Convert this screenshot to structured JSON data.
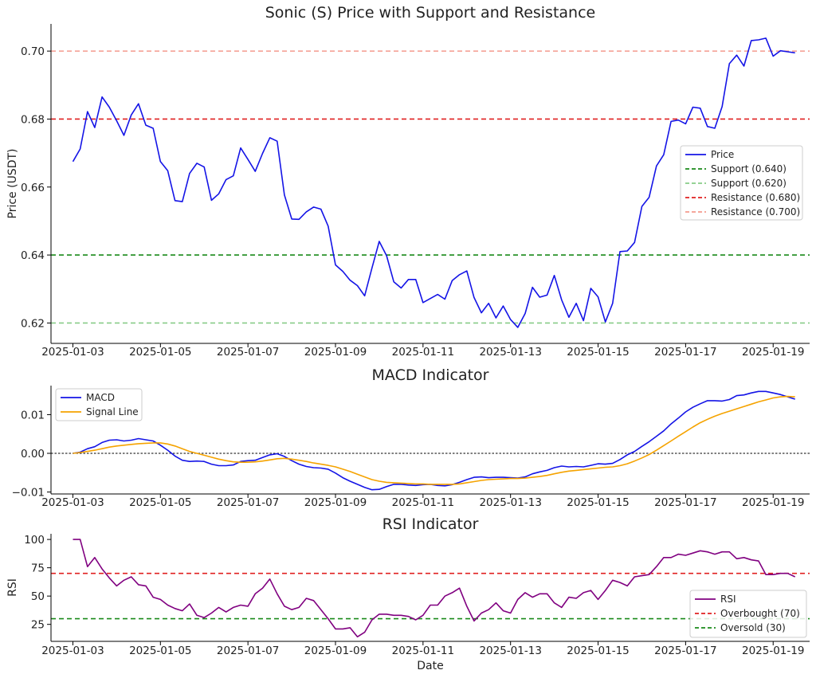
{
  "chart_data": [
    {
      "type": "line",
      "title": "Sonic (S) Price with Support and Resistance",
      "xlabel": "",
      "ylabel": "Price (USDT)",
      "xlim": [
        "2025-01-02T12:00",
        "2025-01-19T20:00"
      ],
      "ylim": [
        0.614,
        0.708
      ],
      "yticks": [
        0.62,
        0.64,
        0.66,
        0.68,
        0.7
      ],
      "ytick_labels": [
        "0.62",
        "0.64",
        "0.66",
        "0.68",
        "0.70"
      ],
      "xtick_labels": [
        "2025-01-03",
        "2025-01-05",
        "2025-01-07",
        "2025-01-09",
        "2025-01-11",
        "2025-01-13",
        "2025-01-15",
        "2025-01-17",
        "2025-01-19"
      ],
      "x_start": "2025-01-03T00:00",
      "x_step_hours": 4,
      "legend_position": "right",
      "series": [
        {
          "name": "Price",
          "color": "#1414e6",
          "values": [
            0.6675,
            0.6712,
            0.6822,
            0.6775,
            0.6865,
            0.6835,
            0.6795,
            0.6752,
            0.6812,
            0.6845,
            0.6782,
            0.6773,
            0.6675,
            0.6648,
            0.656,
            0.6557,
            0.664,
            0.667,
            0.6659,
            0.6561,
            0.658,
            0.6622,
            0.6633,
            0.6715,
            0.6681,
            0.6646,
            0.6699,
            0.6745,
            0.6735,
            0.6577,
            0.6506,
            0.6505,
            0.6527,
            0.6541,
            0.6535,
            0.6485,
            0.6371,
            0.6352,
            0.6326,
            0.631,
            0.628,
            0.6362,
            0.644,
            0.6398,
            0.6321,
            0.6303,
            0.6328,
            0.6328,
            0.626,
            0.6272,
            0.6284,
            0.627,
            0.6325,
            0.6342,
            0.6353,
            0.6275,
            0.623,
            0.6258,
            0.6215,
            0.625,
            0.621,
            0.6187,
            0.6228,
            0.6305,
            0.6276,
            0.6282,
            0.634,
            0.6268,
            0.6217,
            0.6258,
            0.6207,
            0.6302,
            0.6277,
            0.6203,
            0.6258,
            0.641,
            0.6412,
            0.6437,
            0.6543,
            0.657,
            0.6662,
            0.6695,
            0.6793,
            0.6797,
            0.6786,
            0.6835,
            0.6832,
            0.6778,
            0.6773,
            0.6837,
            0.6963,
            0.6988,
            0.6956,
            0.7031,
            0.7033,
            0.7038,
            0.6985,
            0.7001,
            0.6998,
            0.6995
          ]
        }
      ],
      "hlines": [
        {
          "name": "Support (0.640)",
          "value": 0.64,
          "color": "#1a8a1a",
          "style": "dashed"
        },
        {
          "name": "Support (0.620)",
          "value": 0.62,
          "color": "#88cc88",
          "style": "dashed"
        },
        {
          "name": "Resistance (0.680)",
          "value": 0.68,
          "color": "#e02020",
          "style": "dashed"
        },
        {
          "name": "Resistance (0.700)",
          "value": 0.7,
          "color": "#f49b8f",
          "style": "dashed"
        }
      ]
    },
    {
      "type": "line",
      "title": "MACD Indicator",
      "xlabel": "",
      "ylabel": "",
      "xlim": [
        "2025-01-02T12:00",
        "2025-01-19T20:00"
      ],
      "ylim": [
        -0.0105,
        0.0175
      ],
      "yticks": [
        -0.01,
        0.0,
        0.01
      ],
      "ytick_labels": [
        "−0.01",
        "0.00",
        "0.01"
      ],
      "xtick_labels": [
        "2025-01-03",
        "2025-01-05",
        "2025-01-07",
        "2025-01-09",
        "2025-01-11",
        "2025-01-13",
        "2025-01-15",
        "2025-01-17",
        "2025-01-19"
      ],
      "x_start": "2025-01-03T00:00",
      "x_step_hours": 4,
      "legend_position": "upper left",
      "zero_line": 0,
      "series": [
        {
          "name": "MACD",
          "color": "#1414e6",
          "values": [
            0.0,
            0.0003,
            0.0012,
            0.0017,
            0.0028,
            0.0034,
            0.0035,
            0.0032,
            0.0034,
            0.0038,
            0.0035,
            0.0032,
            0.0021,
            0.0008,
            -0.0007,
            -0.0018,
            -0.0021,
            -0.002,
            -0.0021,
            -0.0028,
            -0.0032,
            -0.0032,
            -0.003,
            -0.0021,
            -0.0019,
            -0.0018,
            -0.0011,
            -0.0004,
            -0.0001,
            -0.0008,
            -0.0019,
            -0.0028,
            -0.0034,
            -0.0037,
            -0.0038,
            -0.0041,
            -0.0051,
            -0.0063,
            -0.0072,
            -0.008,
            -0.0088,
            -0.0094,
            -0.0093,
            -0.0086,
            -0.008,
            -0.008,
            -0.0082,
            -0.0083,
            -0.0081,
            -0.008,
            -0.0083,
            -0.0084,
            -0.0081,
            -0.0075,
            -0.0068,
            -0.0062,
            -0.0061,
            -0.0063,
            -0.0062,
            -0.0062,
            -0.0063,
            -0.0064,
            -0.0061,
            -0.0053,
            -0.0048,
            -0.0044,
            -0.0037,
            -0.0033,
            -0.0035,
            -0.0034,
            -0.0035,
            -0.0031,
            -0.0027,
            -0.0028,
            -0.0026,
            -0.0016,
            -0.0004,
            0.0005,
            0.0018,
            0.003,
            0.0044,
            0.0058,
            0.0076,
            0.0091,
            0.0107,
            0.0119,
            0.0128,
            0.0136,
            0.0136,
            0.0135,
            0.0139,
            0.0149,
            0.0151,
            0.0156,
            0.016,
            0.016,
            0.0156,
            0.0152,
            0.0146,
            0.014
          ]
        },
        {
          "name": "Signal Line",
          "color": "#f5a300",
          "values": [
            0.0,
            0.0002,
            0.0005,
            0.0008,
            0.0012,
            0.0016,
            0.0019,
            0.0021,
            0.0023,
            0.0025,
            0.0026,
            0.0027,
            0.0027,
            0.0024,
            0.0019,
            0.0012,
            0.0005,
            0.0,
            -0.0005,
            -0.001,
            -0.0015,
            -0.0019,
            -0.0022,
            -0.0023,
            -0.0023,
            -0.0022,
            -0.002,
            -0.0017,
            -0.0014,
            -0.0013,
            -0.0015,
            -0.0018,
            -0.0021,
            -0.0025,
            -0.0028,
            -0.0031,
            -0.0035,
            -0.0041,
            -0.0047,
            -0.0054,
            -0.0061,
            -0.0068,
            -0.0072,
            -0.0075,
            -0.0076,
            -0.0077,
            -0.0078,
            -0.0079,
            -0.0079,
            -0.008,
            -0.008,
            -0.008,
            -0.008,
            -0.0079,
            -0.0076,
            -0.0073,
            -0.007,
            -0.0068,
            -0.0067,
            -0.0066,
            -0.0065,
            -0.0065,
            -0.0064,
            -0.0062,
            -0.006,
            -0.0057,
            -0.0053,
            -0.0049,
            -0.0046,
            -0.0044,
            -0.0042,
            -0.004,
            -0.0038,
            -0.0036,
            -0.0035,
            -0.0032,
            -0.0027,
            -0.002,
            -0.0012,
            -0.0003,
            0.0008,
            0.002,
            0.0032,
            0.0044,
            0.0056,
            0.0068,
            0.0079,
            0.0088,
            0.0096,
            0.0103,
            0.0109,
            0.0115,
            0.0121,
            0.0127,
            0.0133,
            0.0138,
            0.0143,
            0.0146,
            0.0147,
            0.0146
          ]
        }
      ]
    },
    {
      "type": "line",
      "title": "RSI Indicator",
      "xlabel": "Date",
      "ylabel": "RSI",
      "xlim": [
        "2025-01-02T12:00",
        "2025-01-19T20:00"
      ],
      "ylim": [
        10,
        105
      ],
      "yticks": [
        25,
        50,
        75,
        100
      ],
      "ytick_labels": [
        "25",
        "50",
        "75",
        "100"
      ],
      "xtick_labels": [
        "2025-01-03",
        "2025-01-05",
        "2025-01-07",
        "2025-01-09",
        "2025-01-11",
        "2025-01-13",
        "2025-01-15",
        "2025-01-17",
        "2025-01-19"
      ],
      "x_start": "2025-01-03T00:00",
      "x_step_hours": 4,
      "legend_position": "lower right",
      "series": [
        {
          "name": "RSI",
          "color": "#800080",
          "values": [
            100,
            100,
            76,
            84,
            74,
            66,
            59,
            64,
            67,
            60,
            59,
            49,
            47,
            42,
            39,
            37,
            43,
            33,
            31,
            35,
            40,
            36,
            40,
            42,
            41,
            52,
            57,
            65,
            52,
            41,
            38,
            40,
            48,
            46,
            38,
            30,
            21,
            21,
            22,
            14,
            18,
            29,
            34,
            34,
            33,
            33,
            32,
            29,
            33,
            42,
            42,
            50,
            53,
            57,
            41,
            28,
            35,
            38,
            44,
            37,
            35,
            47,
            53,
            49,
            52,
            52,
            44,
            40,
            49,
            48,
            53,
            55,
            47,
            55,
            64,
            62,
            59,
            67,
            68,
            69,
            76,
            84,
            84,
            87,
            86,
            88,
            90,
            89,
            87,
            89,
            89,
            83,
            84,
            82,
            81,
            69,
            69,
            70,
            70,
            67
          ]
        }
      ],
      "hlines": [
        {
          "name": "Overbought (70)",
          "value": 70,
          "color": "#e02020",
          "style": "dashed"
        },
        {
          "name": "Oversold (30)",
          "value": 30,
          "color": "#1a8a1a",
          "style": "dashed"
        }
      ]
    }
  ]
}
